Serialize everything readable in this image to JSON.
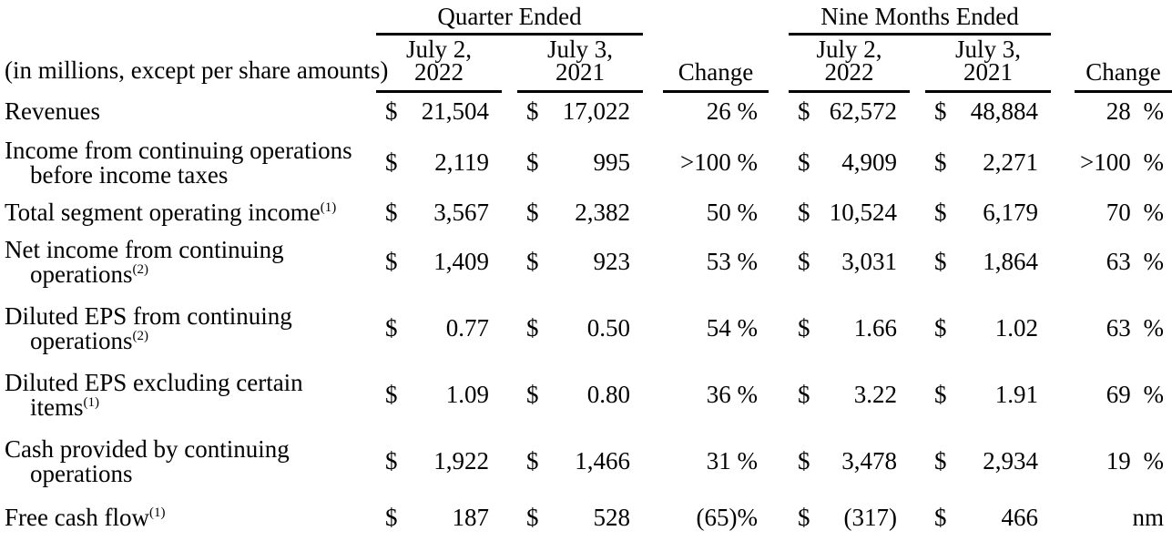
{
  "meta": {
    "currency_symbol": "$"
  },
  "header": {
    "note": "(in millions, except per share amounts)",
    "quarter_group_label": "Quarter Ended",
    "nine_months_group_label": "Nine Months Ended",
    "col_2022_line1": "July 2,",
    "col_2022_line2": "2022",
    "col_2021_line1": "July 3,",
    "col_2021_line2": "2021",
    "change_label": "Change"
  },
  "rows": [
    {
      "l1": "Revenues",
      "s1": "",
      "l2": "",
      "s2": "",
      "q22": "21,504",
      "q21": "17,022",
      "qc": "26 %",
      "n22": "62,572",
      "n21": "48,884",
      "nc": "28 %"
    },
    {
      "l1": "Income from continuing operations",
      "s1": "",
      "l2": "before income taxes",
      "s2": "",
      "q22": "2,119",
      "q21": "995",
      "qc": ">100 %",
      "n22": "4,909",
      "n21": "2,271",
      "nc": ">100 %"
    },
    {
      "l1": "Total segment operating income",
      "s1": "(1)",
      "l2": "",
      "s2": "",
      "q22": "3,567",
      "q21": "2,382",
      "qc": "50 %",
      "n22": "10,524",
      "n21": "6,179",
      "nc": "70 %"
    },
    {
      "l1": "Net income from continuing",
      "s1": "",
      "l2": "operations",
      "s2": "(2)",
      "q22": "1,409",
      "q21": "923",
      "qc": "53 %",
      "n22": "3,031",
      "n21": "1,864",
      "nc": "63 %"
    },
    {
      "l1": "Diluted EPS from continuing",
      "s1": "",
      "l2": "operations",
      "s2": "(2)",
      "q22": "0.77",
      "q21": "0.50",
      "qc": "54 %",
      "n22": "1.66",
      "n21": "1.02",
      "nc": "63 %"
    },
    {
      "l1": "Diluted EPS excluding certain",
      "s1": "",
      "l2": "items",
      "s2": "(1)",
      "q22": "1.09",
      "q21": "0.80",
      "qc": "36 %",
      "n22": "3.22",
      "n21": "1.91",
      "nc": "69 %"
    },
    {
      "l1": "Cash provided by continuing",
      "s1": "",
      "l2": "operations",
      "s2": "",
      "q22": "1,922",
      "q21": "1,466",
      "qc": "31 %",
      "n22": "3,478",
      "n21": "2,934",
      "nc": "19 %"
    },
    {
      "l1": "Free cash flow",
      "s1": "(1)",
      "l2": "",
      "s2": "",
      "q22": "187",
      "q21": "528",
      "qc": "(65)%",
      "n22": "(317)",
      "n21": "466",
      "nc": "nm"
    }
  ]
}
